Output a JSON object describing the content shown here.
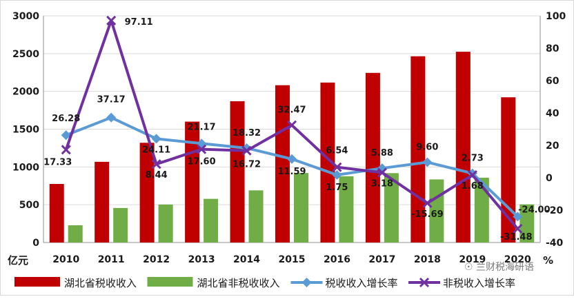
{
  "chart_data": {
    "type": "bar",
    "categories": [
      "2010",
      "2011",
      "2012",
      "2013",
      "2014",
      "2015",
      "2016",
      "2017",
      "2018",
      "2019",
      "2020"
    ],
    "left_axis_unit": "亿元",
    "right_axis_unit": "%",
    "ylim_left": [
      0,
      3000
    ],
    "ylim_right": [
      -40,
      100
    ],
    "yticks_left": [
      "0",
      "500",
      "1000",
      "1500",
      "2000",
      "2500",
      "3000"
    ],
    "yticks_right": [
      "-40",
      "-20",
      "0",
      "20",
      "40",
      "60",
      "80",
      "100"
    ],
    "grid": true,
    "legend_position": "bottom",
    "series": [
      {
        "name": "湖北省税收收入",
        "kind": "bar",
        "axis": "left",
        "color": "#c00000",
        "values": [
          775,
          1068,
          1320,
          1600,
          1870,
          2082,
          2117,
          2245,
          2465,
          2525,
          1922
        ]
      },
      {
        "name": "湖北省非税收收入",
        "kind": "bar",
        "axis": "left",
        "color": "#70ad47",
        "values": [
          228,
          457,
          503,
          578,
          690,
          920,
          877,
          918,
          835,
          858,
          505
        ]
      },
      {
        "name": "税收收入增长率",
        "kind": "line",
        "axis": "right",
        "color": "#5b9bd5",
        "marker": "diamond",
        "values": [
          26.28,
          37.17,
          24.11,
          21.17,
          18.32,
          11.59,
          1.75,
          5.88,
          9.6,
          2.73,
          -24.0
        ],
        "labels": [
          "26.28",
          "37.17",
          "24.11",
          "21.17",
          "18.32",
          "11.59",
          "1.75",
          "5.88",
          "9.60",
          "2.73",
          "-24.00"
        ]
      },
      {
        "name": "非税收入增长率",
        "kind": "line",
        "axis": "right",
        "color": "#7030a0",
        "marker": "x",
        "values": [
          17.33,
          97.11,
          8.44,
          17.6,
          16.72,
          32.47,
          6.54,
          3.18,
          -15.69,
          1.68,
          -31.48
        ],
        "labels": [
          "17.33",
          "97.11",
          "8.44",
          "17.60",
          "16.72",
          "32.47",
          "6.54",
          "3.18",
          "-15.69",
          "1.68",
          "-31.48"
        ]
      }
    ]
  },
  "watermark": "兰财税海研语",
  "colors": {
    "grid": "#d9d9d9",
    "axis": "#8c8c8c"
  }
}
